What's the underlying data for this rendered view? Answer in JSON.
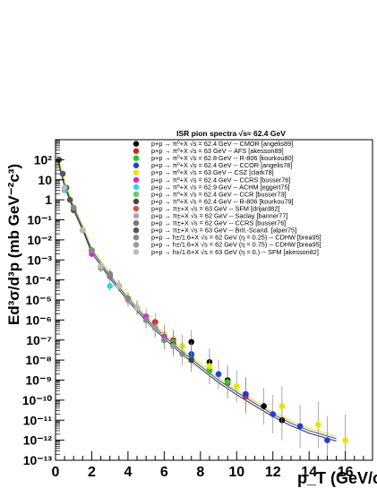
{
  "chart_data": {
    "type": "scatter",
    "title": "ISR pion spectra  √s≈ 62.4 GeV",
    "xlabel": "p_T (GeV/c)",
    "ylabel": "Ed³σ/d³p (mb GeV⁻²c³)",
    "xlim": [
      0,
      17.5
    ],
    "ylim": [
      1e-13,
      1000
    ],
    "y_scale": "log",
    "grid": false,
    "legend_position": "top-right",
    "x_tick_labels": [
      "0",
      "2",
      "4",
      "6",
      "8",
      "10",
      "12",
      "14",
      "16"
    ],
    "y_tick_labels": [
      "10⁻¹³",
      "10⁻¹²",
      "10⁻¹¹",
      "10⁻¹⁰",
      "10⁻⁹",
      "10⁻⁸",
      "10⁻⁷",
      "10⁻⁶",
      "10⁻⁵",
      "10⁻⁴",
      "10⁻³",
      "10⁻²",
      "10⁻¹",
      "1",
      "10",
      "10²"
    ],
    "series": [
      {
        "name": "p+p → π⁰+X √s = 62.4 GeV -- CMOR [angelis89]",
        "color": "#000000",
        "x": [
          7.5,
          8.5,
          9.5,
          10.5,
          11.5,
          12.5
        ],
        "y": [
          8e-08,
          8e-09,
          1e-09,
          2e-10,
          5e-11,
          1e-11
        ]
      },
      {
        "name": "p+p → π⁰+X √s = 63 GeV -- AFS [akesson89]",
        "color": "#e41a1c",
        "x": [
          5.5,
          6.5,
          7.5,
          8.5,
          9.5,
          10.5
        ],
        "y": [
          8e-07,
          1e-07,
          1.5e-08,
          3e-09,
          7e-10,
          1.5e-10
        ]
      },
      {
        "name": "p+p → π⁰+X √s = 62.8 GeV -- R-806 [kourkou80]",
        "color": "#22cc22",
        "x": [
          3.5,
          4.5,
          5.5,
          6.5,
          7.5,
          8.5,
          9.5
        ],
        "y": [
          5e-05,
          4e-06,
          4e-07,
          8e-08,
          1.5e-08,
          3e-09,
          8e-10
        ]
      },
      {
        "name": "p+p → π⁰+X √s = 62.4 GeV -- CCOR [angelis78]",
        "color": "#1f3fdd",
        "x": [
          7.5,
          9.0,
          10.5,
          12.0,
          13.5,
          15.0
        ],
        "y": [
          2e-08,
          2e-09,
          2e-10,
          2e-11,
          5e-12,
          1e-12
        ]
      },
      {
        "name": "p+p → π⁰+X √s = 63 GeV -- CSZ [clark78]",
        "color": "#e6e600",
        "x": [
          6.0,
          7.0,
          8.5,
          10.0,
          12.5,
          14.5,
          16.0
        ],
        "y": [
          2e-07,
          5e-08,
          5e-09,
          5e-10,
          5e-11,
          6e-12,
          1e-12
        ]
      },
      {
        "name": "p+p → π⁰+X √s = 62.4 GeV -- CCRS [busser76]",
        "color": "#dd22dd",
        "x": [
          2.0,
          3.0,
          4.0,
          5.0,
          6.0
        ],
        "y": [
          0.002,
          0.0002,
          1e-05,
          1.5e-06,
          1.5e-07
        ]
      },
      {
        "name": "p+p → π⁰+X √s = 62.9 GeV -- ACHM [eggert75]",
        "color": "#22dddd",
        "x": [
          0.5,
          1.0,
          1.5,
          2.0,
          2.5,
          3.0
        ],
        "y": [
          3,
          0.3,
          0.03,
          0.003,
          0.0004,
          5e-05
        ]
      },
      {
        "name": "p+p → π⁰+X √s = 62.4 GeV -- CCR [busser73]",
        "color": "#66cc66",
        "x": [
          2.0,
          3.0,
          4.0,
          5.0
        ],
        "y": [
          0.003,
          0.00015,
          1.2e-05,
          1e-06
        ]
      },
      {
        "name": "p+p → π⁰+X √s = 62.4 GeV -- R-806 [kourkou79]",
        "color": "#444444",
        "x": [
          3.5,
          4.5,
          5.5,
          6.5,
          7.5
        ],
        "y": [
          5e-05,
          4e-06,
          4e-07,
          6e-08,
          1e-08
        ]
      },
      {
        "name": "p+p → π±+X √s = 63 GeV -- SFM [drijard82]",
        "color": "#cc5544",
        "x": [
          1.0,
          2.0,
          3.0,
          4.0,
          5.0
        ],
        "y": [
          0.4,
          0.003,
          0.00015,
          1e-05,
          1e-06
        ]
      },
      {
        "name": "p+p → π±+X √s = 62 GeV -- Saclay [banner77]",
        "color": "#aaaaaa",
        "x": [
          1.0,
          2.0,
          3.0,
          4.0
        ],
        "y": [
          0.3,
          0.003,
          0.0002,
          1e-05
        ]
      },
      {
        "name": "p+p → π±+X √s = 62 GeV -- CCRS [busser76]",
        "color": "#777777",
        "x": [
          2.0,
          3.0,
          4.0,
          5.0,
          6.0
        ],
        "y": [
          0.003,
          0.00015,
          1.2e-05,
          1e-06,
          1e-07
        ]
      },
      {
        "name": "p+p → π±+X √s = 63 GeV -- Brit.-Scand. [alper75]",
        "color": "#555555",
        "x": [
          0.2,
          0.4,
          0.6,
          0.8,
          1.0,
          1.5,
          2.0
        ],
        "y": [
          100,
          20,
          4,
          1,
          0.3,
          0.03,
          0.003
        ]
      },
      {
        "name": "p+p → h±/1.6+X √s = 62 GeV (η = 0.25) -- CDHW [brea95]",
        "color": "#888888",
        "x": [
          1.0,
          2.0,
          3.0,
          4.0,
          5.0,
          6.0,
          7.0
        ],
        "y": [
          0.4,
          0.003,
          0.0002,
          1.2e-05,
          1e-06,
          1e-07,
          2e-08
        ]
      },
      {
        "name": "p+p → h±/1.6+X √s = 62 GeV (η = 0.75) -- CDHW [brea95]",
        "color": "#999999",
        "x": [
          1.5,
          2.5,
          3.5,
          4.5,
          5.5,
          6.5
        ],
        "y": [
          0.03,
          0.0004,
          5e-05,
          4e-06,
          4e-07,
          5e-08
        ]
      },
      {
        "name": "p+p → h±/1.6+X √s = 63 GeV (η = 0.) -- SFM [akesson82]",
        "color": "#bbbbbb",
        "x": [
          0.5,
          1.5,
          2.5,
          3.5,
          4.5
        ],
        "y": [
          4,
          0.03,
          0.0005,
          5e-05,
          4e-06
        ]
      }
    ]
  }
}
